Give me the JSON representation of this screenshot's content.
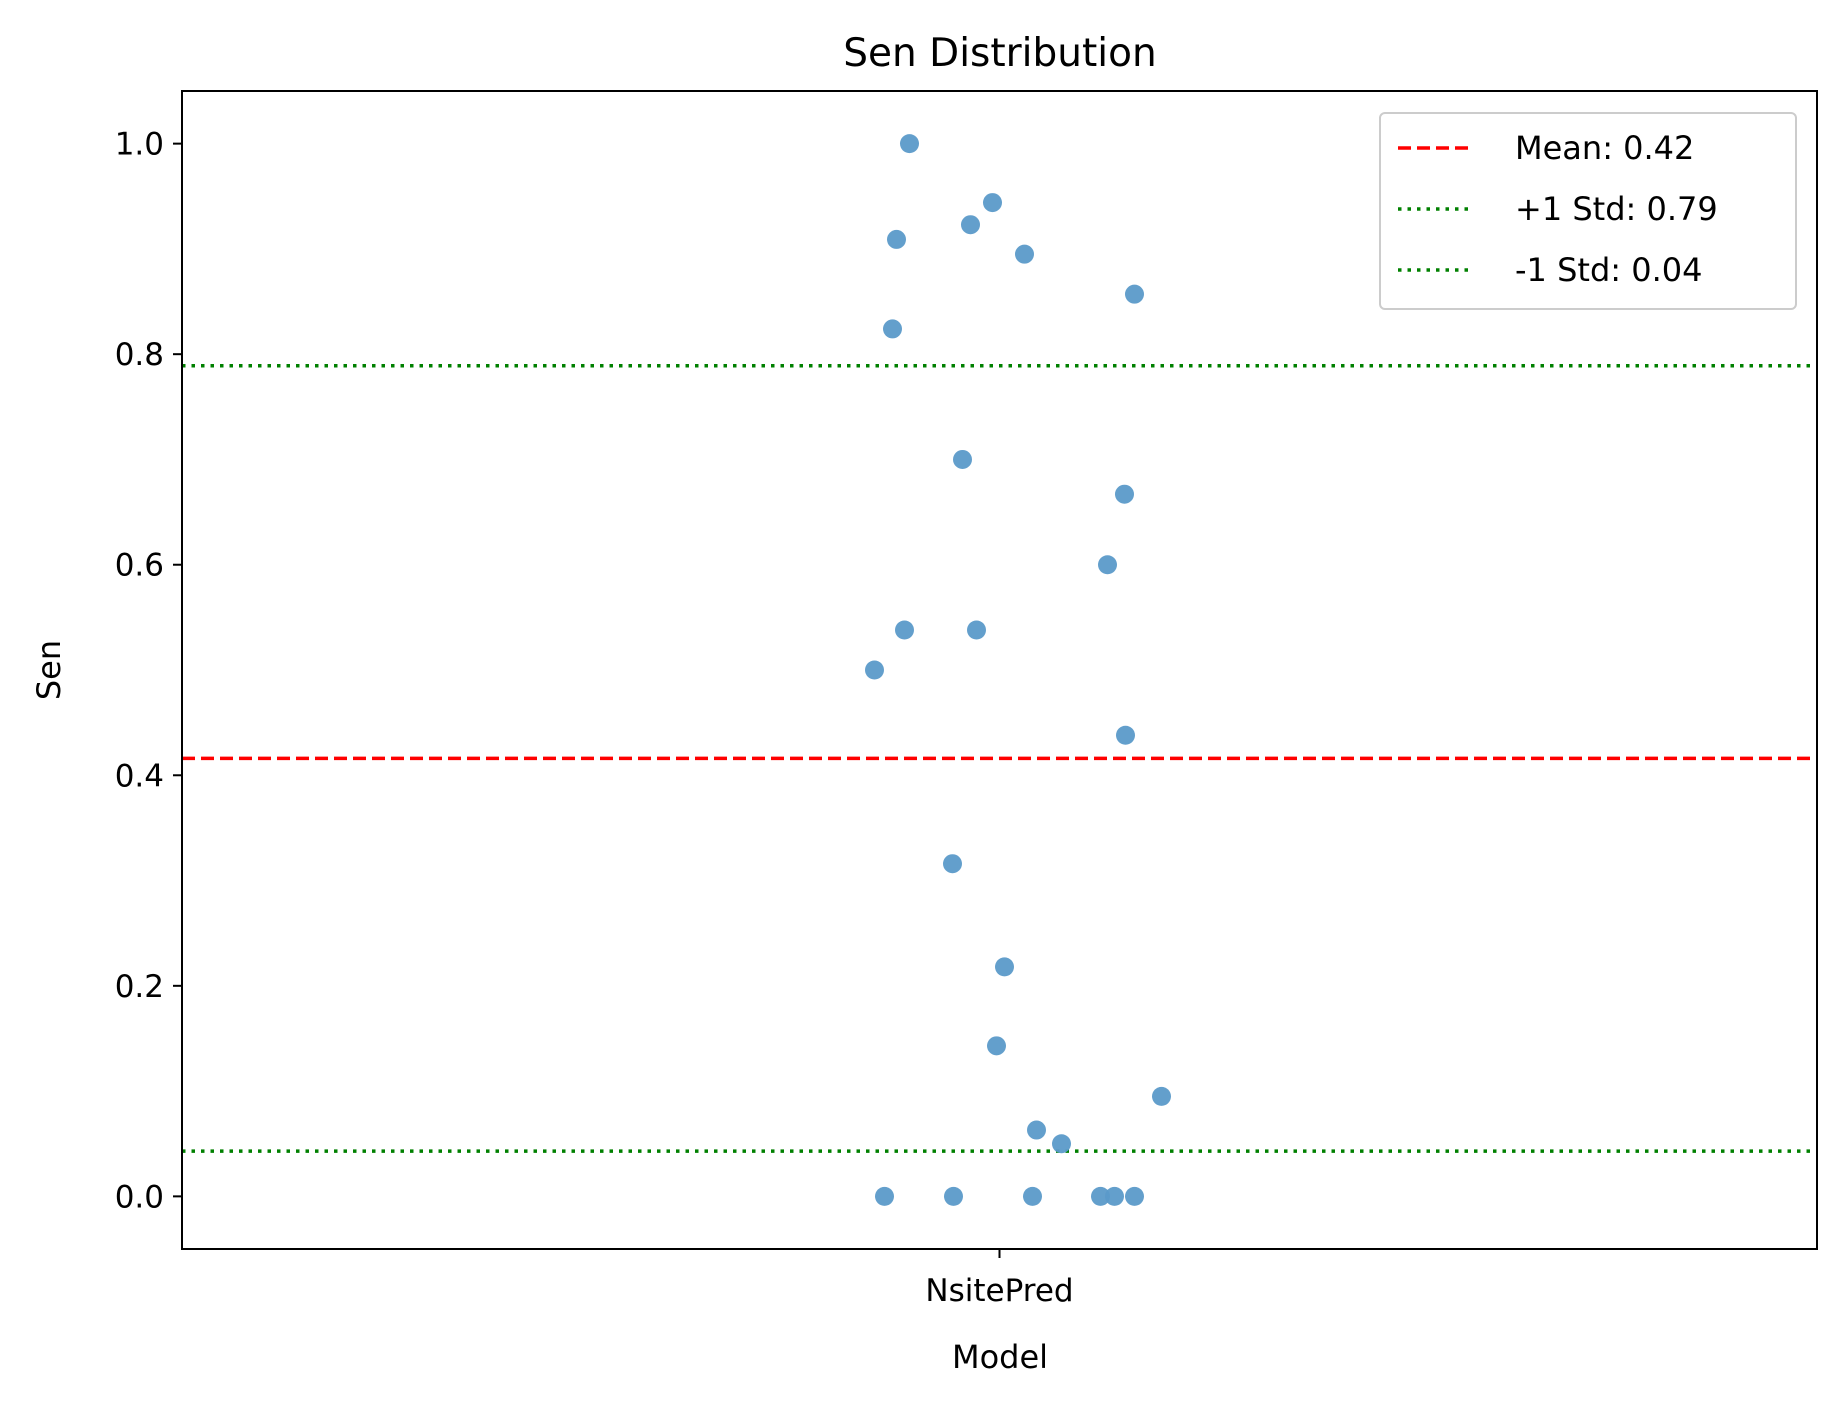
{
  "chart_data": {
    "type": "scatter",
    "subtype": "strip",
    "title": "Sen Distribution",
    "xlabel": "Model",
    "ylabel": "Sen",
    "categories": [
      "NsitePred"
    ],
    "ylim": [
      -0.05,
      1.05
    ],
    "yticks": [
      "0.0",
      "0.2",
      "0.4",
      "0.6",
      "0.8",
      "1.0"
    ],
    "grid": false,
    "legend_placement": "top-right",
    "series": [
      {
        "category": "NsitePred",
        "color": "#5b9ac9",
        "values": [
          1.0,
          0.944,
          0.923,
          0.909,
          0.895,
          0.857,
          0.824,
          0.7,
          0.667,
          0.6,
          0.538,
          0.538,
          0.5,
          0.438,
          0.316,
          0.218,
          0.143,
          0.095,
          0.063,
          0.05,
          0.0,
          0.0,
          0.0,
          0.0,
          0.0,
          0.0
        ]
      }
    ],
    "reference_lines": [
      {
        "label": "Mean: 0.42",
        "value": 0.416,
        "style": "dashed",
        "color": "#ff0000"
      },
      {
        "label": "+1 Std: 0.79",
        "value": 0.789,
        "style": "dotted",
        "color": "#008000"
      },
      {
        "label": "-1 Std: 0.04",
        "value": 0.043,
        "style": "dotted",
        "color": "#008000"
      }
    ]
  }
}
